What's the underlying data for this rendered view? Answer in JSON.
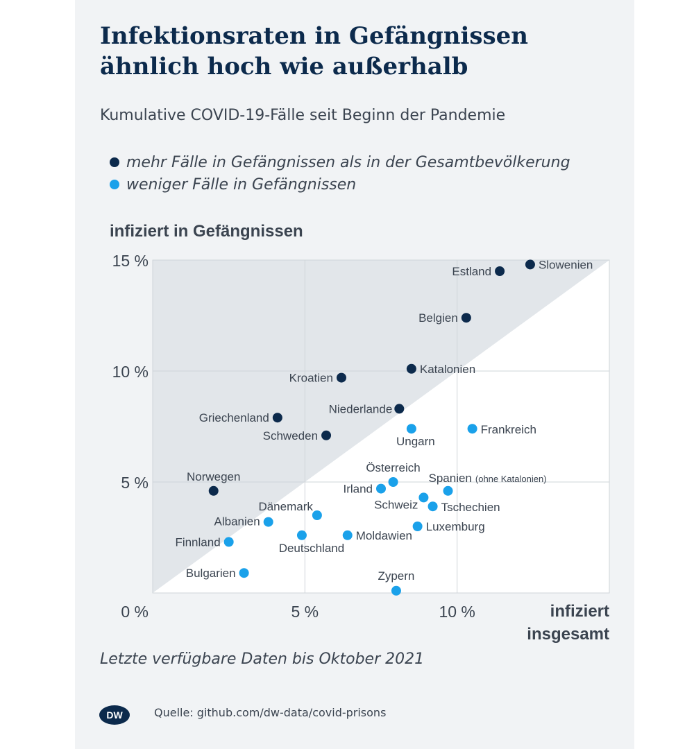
{
  "title_line1": "Infektionsraten in Gefängnissen",
  "title_line2": "ähnlich hoch wie außerhalb",
  "subtitle": "Kumulative COVID-19-Fälle seit Beginn der Pandemie",
  "legend": [
    {
      "label": "mehr Fälle in Gefängnissen als in der Gesamtbevölkerung",
      "color": "#0c2a4c"
    },
    {
      "label": "weniger Fälle in Gefängnissen",
      "color": "#1aa1ea"
    }
  ],
  "footnote": "Letzte verfügbare Daten bis Oktober 2021",
  "source": "Quelle: github.com/dw-data/covid-prisons",
  "logo_text": "DW",
  "colors": {
    "more": "#0c2a4c",
    "less": "#1aa1ea",
    "diagonal_area": "#e2e6ea",
    "grid": "#cfd4d9"
  },
  "chart_data": {
    "type": "scatter",
    "ylabel": "infiziert in Gefängnissen",
    "xlabel_line1": "infiziert",
    "xlabel_line2": "insgesamt",
    "xlim": [
      0,
      15
    ],
    "ylim": [
      0,
      15
    ],
    "x_ticks": [
      "0 %",
      "5 %",
      "10 %"
    ],
    "y_ticks": [
      "5 %",
      "10 %",
      "15 %"
    ],
    "grid": true,
    "reference_line": "y = x",
    "points": [
      {
        "label": "Slowenien",
        "x": 12.4,
        "y": 14.8,
        "group": "more"
      },
      {
        "label": "Estland",
        "x": 11.4,
        "y": 14.5,
        "group": "more"
      },
      {
        "label": "Belgien",
        "x": 10.3,
        "y": 12.4,
        "group": "more"
      },
      {
        "label": "Katalonien",
        "x": 8.5,
        "y": 10.1,
        "group": "more"
      },
      {
        "label": "Kroatien",
        "x": 6.2,
        "y": 9.7,
        "group": "more"
      },
      {
        "label": "Niederlande",
        "x": 8.1,
        "y": 8.3,
        "group": "more"
      },
      {
        "label": "Griechenland",
        "x": 4.1,
        "y": 7.9,
        "group": "more"
      },
      {
        "label": "Schweden",
        "x": 5.7,
        "y": 7.1,
        "group": "more"
      },
      {
        "label": "Norwegen",
        "x": 2.0,
        "y": 4.6,
        "group": "more"
      },
      {
        "label": "Frankreich",
        "x": 10.5,
        "y": 7.4,
        "group": "less"
      },
      {
        "label": "Ungarn",
        "x": 8.5,
        "y": 7.4,
        "group": "less"
      },
      {
        "label": "Österreich",
        "x": 7.9,
        "y": 5.0,
        "group": "less"
      },
      {
        "label": "Irland",
        "x": 7.5,
        "y": 4.7,
        "group": "less"
      },
      {
        "label": "Spanien",
        "label_note": "(ohne Katalonien)",
        "x": 9.7,
        "y": 4.6,
        "group": "less"
      },
      {
        "label": "Schweiz",
        "x": 8.9,
        "y": 4.3,
        "group": "less"
      },
      {
        "label": "Tschechien",
        "x": 9.2,
        "y": 3.9,
        "group": "less"
      },
      {
        "label": "Dänemark",
        "x": 5.4,
        "y": 3.5,
        "group": "less"
      },
      {
        "label": "Albanien",
        "x": 3.8,
        "y": 3.2,
        "group": "less"
      },
      {
        "label": "Luxemburg",
        "x": 8.7,
        "y": 3.0,
        "group": "less"
      },
      {
        "label": "Moldawien",
        "x": 6.4,
        "y": 2.6,
        "group": "less"
      },
      {
        "label": "Deutschland",
        "x": 4.9,
        "y": 2.6,
        "group": "less"
      },
      {
        "label": "Finnland",
        "x": 2.5,
        "y": 2.3,
        "group": "less"
      },
      {
        "label": "Bulgarien",
        "x": 3.0,
        "y": 0.9,
        "group": "less"
      },
      {
        "label": "Zypern",
        "x": 8.0,
        "y": 0.1,
        "group": "less"
      }
    ]
  }
}
